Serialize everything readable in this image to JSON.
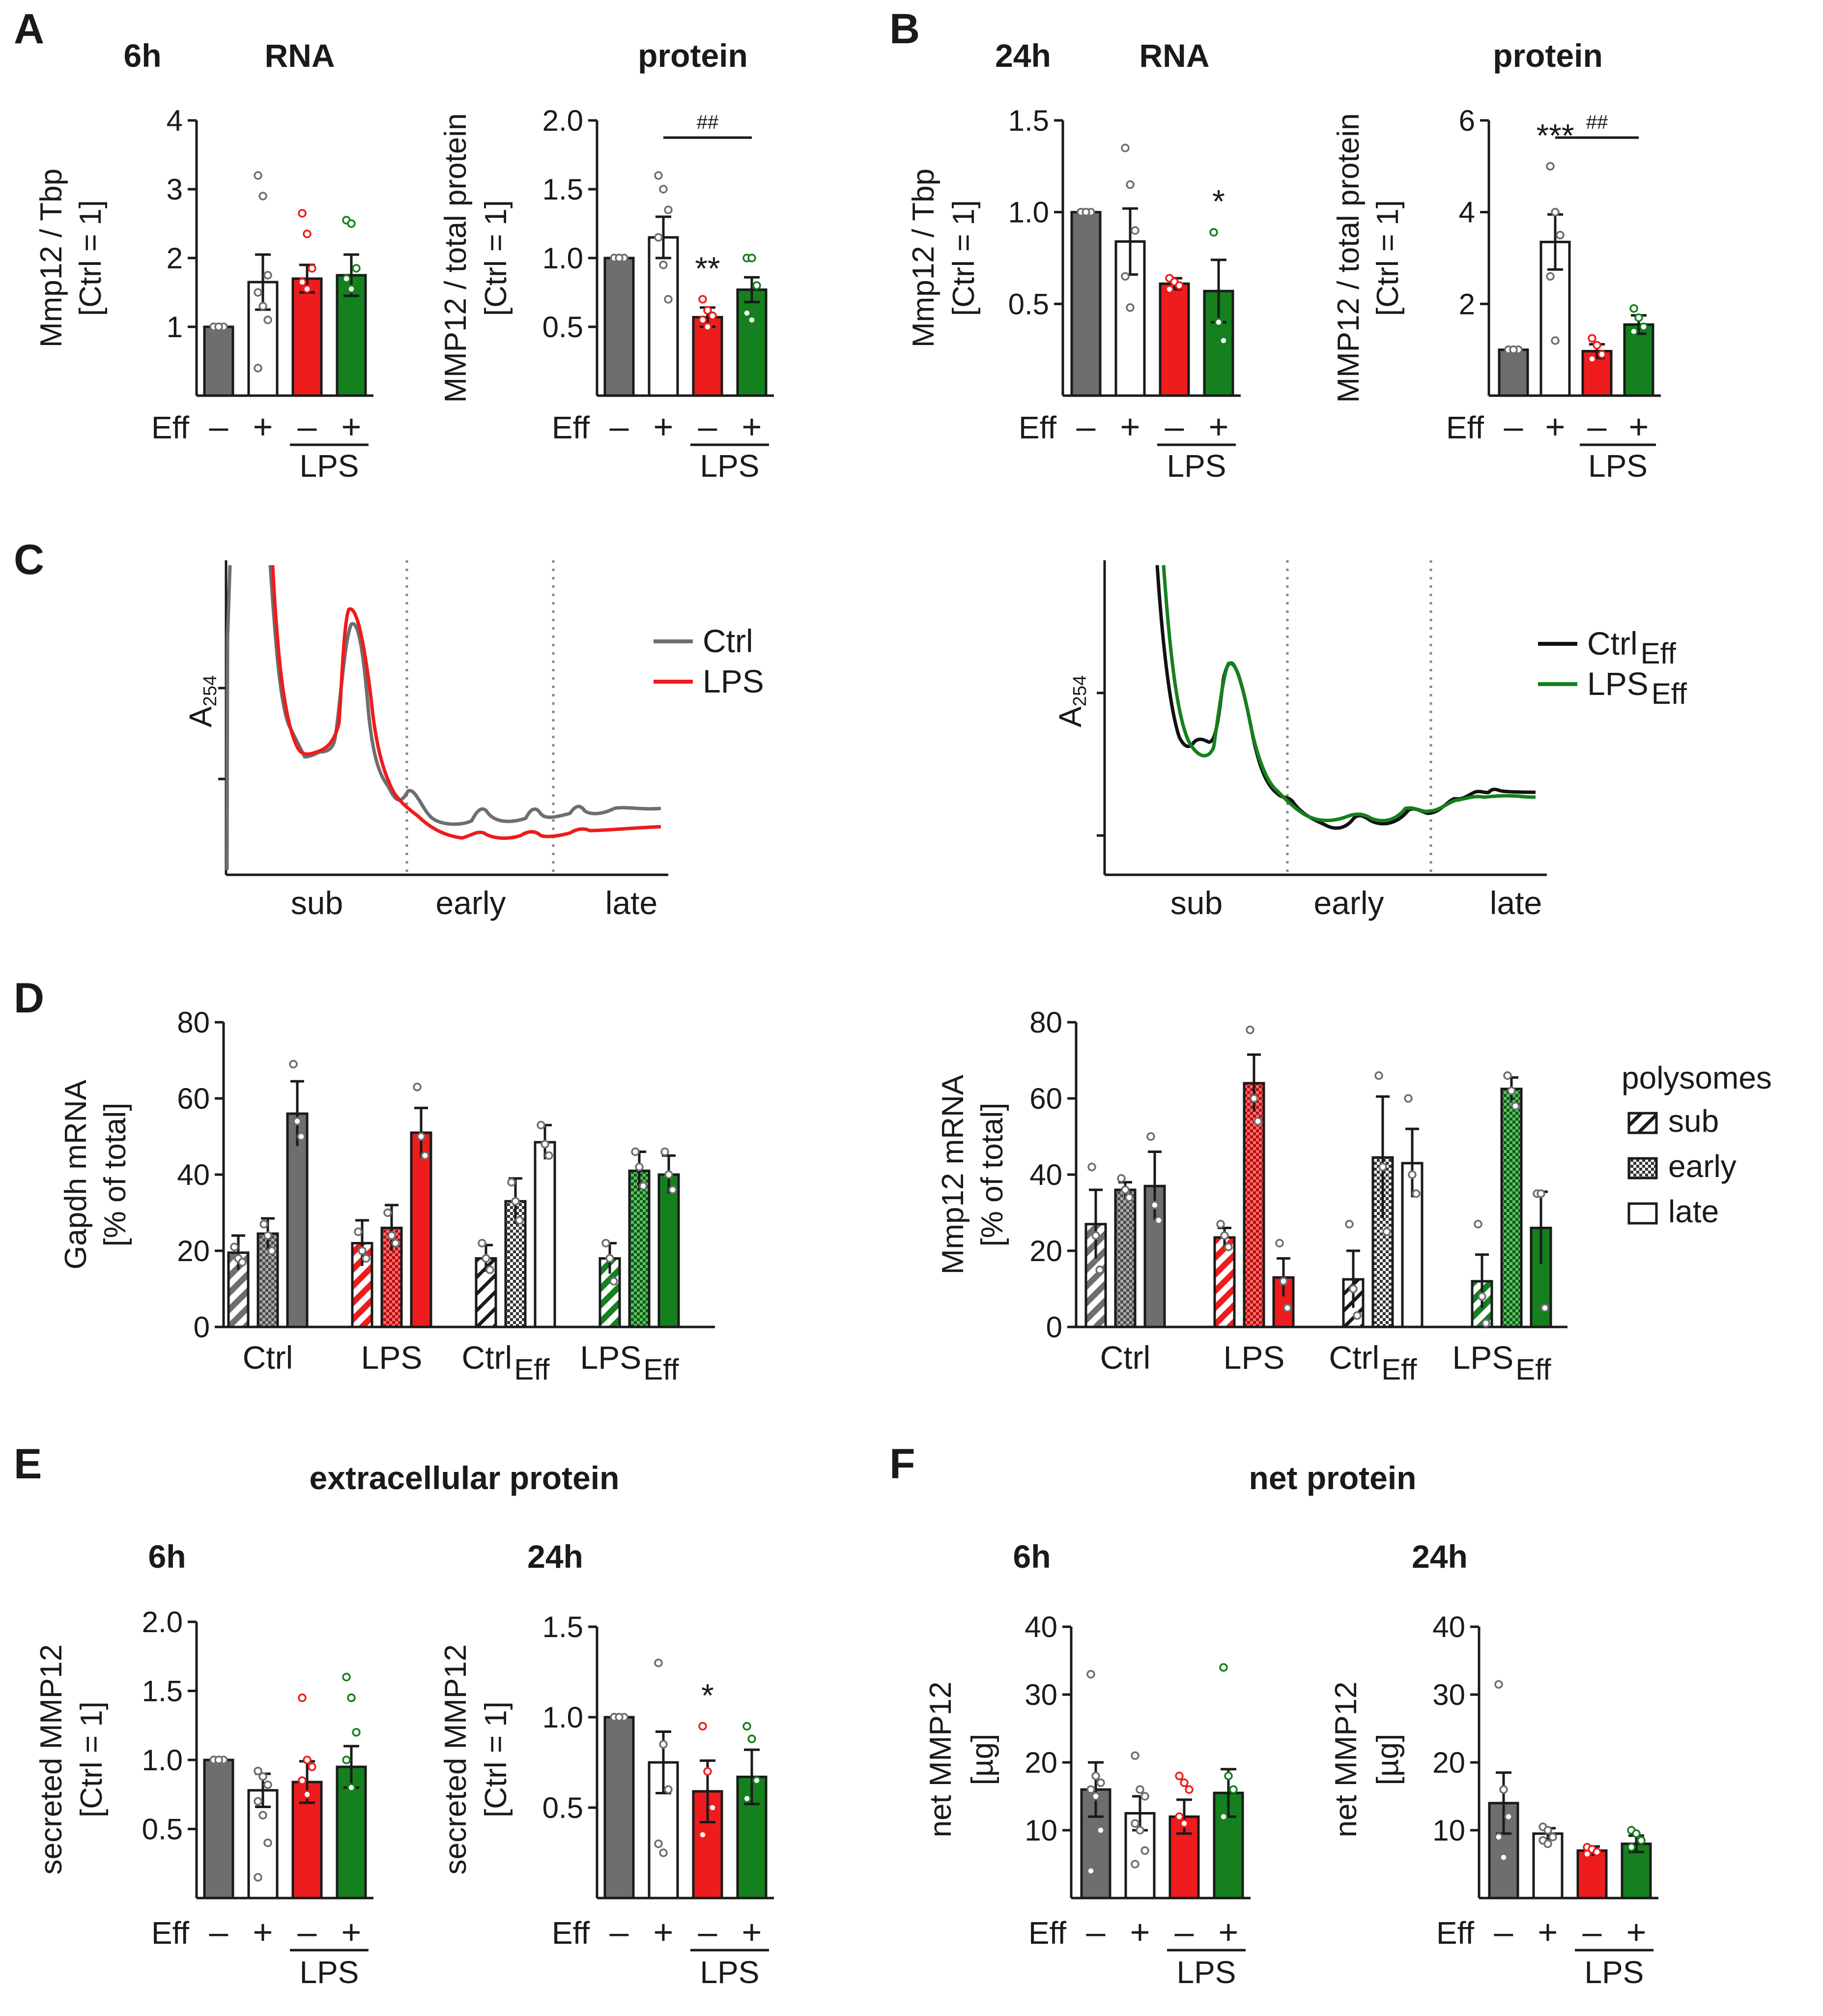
{
  "colors": {
    "ctrl": "#6e6e6e",
    "eff": "#ffffff",
    "lps": "#ee1c1c",
    "lps_eff": "#14801e",
    "dots_ctrl": "#6e6e6e",
    "dots_lps": "#ee1c1c",
    "dots_green": "#14801e"
  },
  "panels": {
    "A": {
      "letter": "A",
      "time": "6h",
      "rna": "RNA",
      "protein": "protein"
    },
    "B": {
      "letter": "B",
      "time": "24h",
      "rna": "RNA",
      "protein": "protein"
    },
    "C": {
      "letter": "C"
    },
    "D": {
      "letter": "D"
    },
    "E": {
      "letter": "E",
      "title": "extracellular protein",
      "t6": "6h",
      "t24": "24h"
    },
    "F": {
      "letter": "F",
      "title": "net protein",
      "t6": "6h",
      "t24": "24h"
    }
  },
  "labels": {
    "eff": "Eff",
    "minus": "–",
    "plus": "+",
    "lps": "LPS"
  },
  "chart_data": [
    {
      "id": "A_rna",
      "type": "bar",
      "title": "RNA",
      "ylabel": [
        "Mmp12 / Tbp",
        "[Ctrl = 1]"
      ],
      "ylim": [
        0,
        4
      ],
      "yticks": [
        "1",
        "2",
        "3",
        "4"
      ],
      "categories": [
        "Ctrl",
        "Eff",
        "LPS",
        "LPS+Eff"
      ],
      "values": [
        1.0,
        1.65,
        1.7,
        1.75
      ],
      "errors": [
        0,
        0.4,
        0.2,
        0.3
      ],
      "points": [
        [
          1,
          1,
          1,
          1,
          1
        ],
        [
          3.2,
          2.9,
          1.75,
          1.5,
          1.3,
          1.1,
          0.4
        ],
        [
          2.65,
          2.35,
          1.85,
          1.65,
          1.55
        ],
        [
          2.55,
          2.5,
          1.85,
          1.7,
          1.55
        ]
      ],
      "annotations": []
    },
    {
      "id": "A_prot",
      "type": "bar",
      "title": "protein",
      "ylabel": [
        "MMP12 / total protein",
        "[Ctrl = 1]"
      ],
      "ylim": [
        0,
        2.0
      ],
      "yticks": [
        "0.5",
        "1.0",
        "1.5",
        "2.0"
      ],
      "categories": [
        "Ctrl",
        "Eff",
        "LPS",
        "LPS+Eff"
      ],
      "values": [
        1.0,
        1.15,
        0.57,
        0.77
      ],
      "errors": [
        0,
        0.15,
        0.07,
        0.09
      ],
      "points": [
        [
          1,
          1,
          1,
          1,
          1
        ],
        [
          1.6,
          1.5,
          1.35,
          1.15,
          0.95,
          0.7
        ],
        [
          0.7,
          0.62,
          0.58,
          0.55,
          0.5
        ],
        [
          1.0,
          1.0,
          0.8,
          0.6,
          0.55
        ]
      ],
      "annotations": [
        {
          "text": "**",
          "bar": 2
        }
      ],
      "bracket": {
        "text": "##",
        "from": 1,
        "to": 3
      }
    },
    {
      "id": "B_rna",
      "type": "bar",
      "title": "RNA",
      "ylabel": [
        "Mmp12 / Tbp",
        "[Ctrl = 1]"
      ],
      "ylim": [
        0,
        1.5
      ],
      "yticks": [
        "0.5",
        "1.0",
        "1.5"
      ],
      "categories": [
        "Ctrl",
        "Eff",
        "LPS",
        "LPS+Eff"
      ],
      "values": [
        1.0,
        0.84,
        0.61,
        0.57
      ],
      "errors": [
        0,
        0.18,
        0.03,
        0.17
      ],
      "points": [
        [
          1,
          1,
          1,
          1,
          1
        ],
        [
          1.35,
          1.15,
          0.9,
          0.65,
          0.48
        ],
        [
          0.64,
          0.62,
          0.6,
          0.58
        ],
        [
          0.89,
          0.4,
          0.3
        ]
      ],
      "annotations": [
        {
          "text": "*",
          "bar": 3
        }
      ]
    },
    {
      "id": "B_prot",
      "type": "bar",
      "title": "protein",
      "ylabel": [
        "MMP12 / total protein",
        "[Ctrl = 1]"
      ],
      "ylim": [
        0,
        6
      ],
      "yticks": [
        "2",
        "4",
        "6"
      ],
      "categories": [
        "Ctrl",
        "Eff",
        "LPS",
        "LPS+Eff"
      ],
      "values": [
        1.0,
        3.35,
        0.97,
        1.55
      ],
      "errors": [
        0,
        0.6,
        0.15,
        0.2
      ],
      "points": [
        [
          1,
          1,
          1,
          1,
          1
        ],
        [
          5.0,
          4.0,
          3.5,
          2.6,
          1.2
        ],
        [
          1.25,
          1.1,
          0.9,
          0.8
        ],
        [
          1.9,
          1.7,
          1.5,
          1.4
        ]
      ],
      "annotations": [
        {
          "text": "***",
          "bar": 1
        }
      ],
      "bracket": {
        "text": "##",
        "from": 1,
        "to": 3
      }
    },
    {
      "id": "C_left",
      "type": "line",
      "ylabel": "A",
      "ysub": "254",
      "xlabels": [
        "sub",
        "early",
        "late"
      ],
      "legend": [
        {
          "name": "Ctrl",
          "sub": ""
        },
        {
          "name": "LPS",
          "sub": ""
        }
      ]
    },
    {
      "id": "C_right",
      "type": "line",
      "ylabel": "A",
      "ysub": "254",
      "xlabels": [
        "sub",
        "early",
        "late"
      ],
      "legend": [
        {
          "name": "Ctrl",
          "sub": "Eff"
        },
        {
          "name": "LPS",
          "sub": "Eff"
        }
      ]
    },
    {
      "id": "D_gapdh",
      "type": "bar",
      "ylabel": [
        "Gapdh mRNA",
        "[% of total]"
      ],
      "ylim": [
        0,
        80
      ],
      "yticks": [
        "0",
        "20",
        "40",
        "60",
        "80"
      ],
      "groups": [
        {
          "name": "Ctrl",
          "sub": ""
        },
        {
          "name": "LPS",
          "sub": ""
        },
        {
          "name": "Ctrl",
          "sub": "Eff"
        },
        {
          "name": "LPS",
          "sub": "Eff"
        }
      ],
      "series": [
        {
          "name": "sub",
          "values": [
            19.5,
            22,
            18,
            18
          ],
          "errors": [
            4.5,
            6,
            3.5,
            4
          ]
        },
        {
          "name": "early",
          "values": [
            24.5,
            26,
            33,
            41
          ],
          "errors": [
            4,
            6,
            6,
            5
          ]
        },
        {
          "name": "late",
          "values": [
            56,
            51,
            48.5,
            40
          ],
          "errors": [
            8.5,
            6.5,
            4.5,
            5
          ]
        }
      ],
      "points": [
        [
          [
            21,
            18,
            17
          ],
          [
            27,
            24,
            20
          ],
          [
            69,
            54,
            50
          ]
        ],
        [
          [
            25,
            20,
            18
          ],
          [
            30,
            24,
            22
          ],
          [
            63,
            50,
            45
          ]
        ],
        [
          [
            22,
            18,
            15
          ],
          [
            38,
            33,
            28
          ],
          [
            53,
            48,
            45
          ]
        ],
        [
          [
            22,
            18,
            12
          ],
          [
            46,
            42,
            37
          ],
          [
            46,
            40,
            36
          ]
        ]
      ]
    },
    {
      "id": "D_mmp12",
      "type": "bar",
      "ylabel": [
        "Mmp12 mRNA",
        "[% of total]"
      ],
      "ylim": [
        0,
        80
      ],
      "yticks": [
        "0",
        "20",
        "40",
        "60",
        "80"
      ],
      "groups": [
        {
          "name": "Ctrl",
          "sub": ""
        },
        {
          "name": "LPS",
          "sub": ""
        },
        {
          "name": "Ctrl",
          "sub": "Eff"
        },
        {
          "name": "LPS",
          "sub": "Eff"
        }
      ],
      "series": [
        {
          "name": "sub",
          "values": [
            27,
            23.5,
            12.5,
            12
          ],
          "errors": [
            9,
            2.5,
            7.5,
            7
          ]
        },
        {
          "name": "early",
          "values": [
            36,
            64,
            44.5,
            62.5
          ],
          "errors": [
            2,
            7.5,
            16,
            3
          ]
        },
        {
          "name": "late",
          "values": [
            37,
            13,
            43,
            26
          ],
          "errors": [
            9,
            5,
            9,
            9.5
          ]
        }
      ],
      "points": [
        [
          [
            42,
            24,
            15
          ],
          [
            39,
            36,
            34
          ],
          [
            50,
            32,
            28
          ]
        ],
        [
          [
            27,
            24,
            21
          ],
          [
            78,
            60,
            54
          ],
          [
            22,
            12,
            5
          ]
        ],
        [
          [
            27,
            10,
            3
          ],
          [
            66,
            42,
            25
          ],
          [
            60,
            40,
            35
          ]
        ],
        [
          [
            27,
            8,
            1
          ],
          [
            66,
            62,
            58
          ],
          [
            35,
            35,
            5
          ]
        ]
      ],
      "legend": {
        "title": "polysomes",
        "items": [
          "sub",
          "early",
          "late"
        ]
      }
    },
    {
      "id": "E_6h",
      "type": "bar",
      "ylabel": [
        "secreted MMP12",
        "[Ctrl = 1]"
      ],
      "ylim": [
        0,
        2.0
      ],
      "yticks": [
        "0.5",
        "1.0",
        "1.5",
        "2.0"
      ],
      "categories": [
        "Ctrl",
        "Eff",
        "LPS",
        "LPS+Eff"
      ],
      "values": [
        1.0,
        0.78,
        0.84,
        0.95
      ],
      "errors": [
        0,
        0.12,
        0.15,
        0.15
      ],
      "points": [
        [
          1,
          1,
          1,
          1,
          1
        ],
        [
          0.92,
          0.88,
          0.82,
          0.7,
          0.6,
          0.4,
          0.15
        ],
        [
          1.45,
          1.0,
          0.95,
          0.85,
          0.75
        ],
        [
          1.6,
          1.45,
          1.2,
          1.0,
          0.8
        ]
      ],
      "annotations": []
    },
    {
      "id": "E_24h",
      "type": "bar",
      "ylabel": [
        "secreted MMP12",
        "[Ctrl = 1]"
      ],
      "ylim": [
        0,
        1.5
      ],
      "yticks": [
        "0.5",
        "1.0",
        "1.5"
      ],
      "categories": [
        "Ctrl",
        "Eff",
        "LPS",
        "LPS+Eff"
      ],
      "values": [
        1.0,
        0.75,
        0.59,
        0.67
      ],
      "errors": [
        0,
        0.17,
        0.17,
        0.15
      ],
      "points": [
        [
          1,
          1,
          1,
          1,
          1
        ],
        [
          1.3,
          0.85,
          0.6,
          0.3,
          0.25
        ],
        [
          0.95,
          0.7,
          0.5,
          0.35
        ],
        [
          0.95,
          0.88,
          0.65,
          0.55
        ]
      ],
      "annotations": [
        {
          "text": "*",
          "bar": 2
        }
      ]
    },
    {
      "id": "F_6h",
      "type": "bar",
      "ylabel": [
        "net MMP12",
        "[µg]"
      ],
      "ylim": [
        0,
        40
      ],
      "yticks": [
        "10",
        "20",
        "30",
        "40"
      ],
      "categories": [
        "Ctrl",
        "Eff",
        "LPS",
        "LPS+Eff"
      ],
      "values": [
        16,
        12.5,
        12,
        15.5
      ],
      "errors": [
        4,
        2.5,
        2.5,
        3.5
      ],
      "points": [
        [
          33,
          18,
          17,
          16,
          15,
          10,
          4
        ],
        [
          21,
          16,
          15,
          11,
          10,
          7,
          5
        ],
        [
          18,
          17,
          16,
          12,
          11
        ],
        [
          34,
          18,
          16,
          12
        ]
      ],
      "annotations": []
    },
    {
      "id": "F_24h",
      "type": "bar",
      "ylabel": [
        "net MMP12",
        "[µg]"
      ],
      "ylim": [
        0,
        40
      ],
      "yticks": [
        "10",
        "20",
        "30",
        "40"
      ],
      "categories": [
        "Ctrl",
        "Eff",
        "LPS",
        "LPS+Eff"
      ],
      "values": [
        14,
        9.5,
        7,
        8
      ],
      "errors": [
        4.5,
        0.8,
        0.6,
        1.2
      ],
      "points": [
        [
          31.5,
          16,
          12,
          9,
          6
        ],
        [
          10.5,
          10,
          9,
          8.5,
          8
        ],
        [
          7.5,
          7.2,
          6.8,
          6.5
        ],
        [
          10,
          9.5,
          8.5,
          7.5
        ]
      ],
      "annotations": []
    }
  ]
}
